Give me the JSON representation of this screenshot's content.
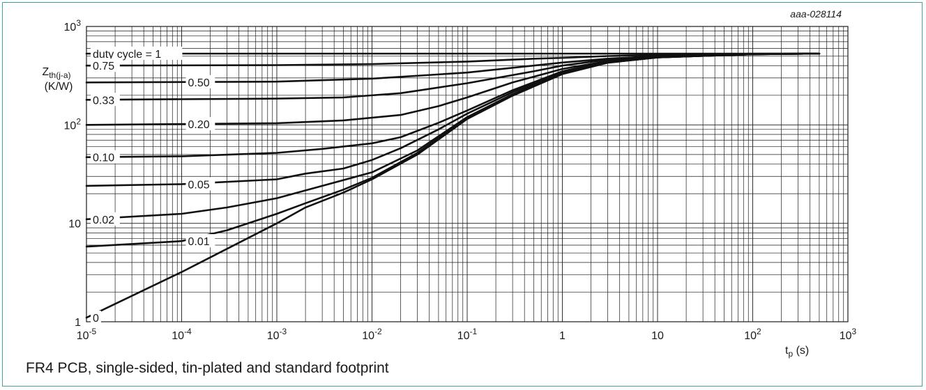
{
  "figure": {
    "code": "aaa-028114",
    "caption": "FR4 PCB, single-sided, tin-plated and standard footprint"
  },
  "chart_data": {
    "type": "line",
    "title": "",
    "xlabel": {
      "main": "t",
      "sub": "p",
      "unit": "(s)"
    },
    "ylabel": {
      "main": "Z",
      "sub": "th(j-a)",
      "unit": "(K/W)"
    },
    "x_scale": "log",
    "y_scale": "log",
    "xlim": [
      1e-05,
      1000
    ],
    "ylim": [
      1,
      1000
    ],
    "grid": true,
    "x_ticks": [
      {
        "value": 1e-05,
        "base": "10",
        "exp": "-5"
      },
      {
        "value": 0.0001,
        "base": "10",
        "exp": "-4"
      },
      {
        "value": 0.001,
        "base": "10",
        "exp": "-3"
      },
      {
        "value": 0.01,
        "base": "10",
        "exp": "-2"
      },
      {
        "value": 0.1,
        "base": "10",
        "exp": "-1"
      },
      {
        "value": 1,
        "base": "1",
        "exp": ""
      },
      {
        "value": 10,
        "base": "10",
        "exp": ""
      },
      {
        "value": 100,
        "base": "10",
        "exp": "2"
      },
      {
        "value": 1000,
        "base": "10",
        "exp": "3"
      }
    ],
    "y_ticks": [
      {
        "value": 1,
        "base": "1",
        "exp": ""
      },
      {
        "value": 10,
        "base": "10",
        "exp": ""
      },
      {
        "value": 100,
        "base": "10",
        "exp": "2"
      },
      {
        "value": 1000,
        "base": "10",
        "exp": "3"
      }
    ],
    "series": [
      {
        "name": "duty cycle = 1",
        "label_at": 1e-05,
        "points": [
          [
            1e-05,
            530
          ],
          [
            500,
            530
          ]
        ]
      },
      {
        "name": "0.75",
        "label_at": 1e-05,
        "points": [
          [
            1e-05,
            400
          ],
          [
            0.001,
            405
          ],
          [
            0.01,
            415
          ],
          [
            0.1,
            440
          ],
          [
            0.5,
            470
          ],
          [
            1,
            480
          ],
          [
            3,
            500
          ],
          [
            10,
            515
          ],
          [
            100,
            528
          ],
          [
            500,
            530
          ]
        ]
      },
      {
        "name": "0.50",
        "label_at": 0.0001,
        "points": [
          [
            1e-05,
            270
          ],
          [
            0.001,
            275
          ],
          [
            0.01,
            295
          ],
          [
            0.1,
            340
          ],
          [
            0.5,
            400
          ],
          [
            1,
            430
          ],
          [
            3,
            470
          ],
          [
            10,
            500
          ],
          [
            100,
            525
          ],
          [
            500,
            530
          ]
        ]
      },
      {
        "name": "0.33",
        "label_at": 1e-05,
        "points": [
          [
            1e-05,
            180
          ],
          [
            0.001,
            185
          ],
          [
            0.005,
            190
          ],
          [
            0.02,
            210
          ],
          [
            0.1,
            265
          ],
          [
            0.5,
            350
          ],
          [
            1,
            400
          ],
          [
            3,
            460
          ],
          [
            10,
            495
          ],
          [
            100,
            525
          ],
          [
            500,
            530
          ]
        ]
      },
      {
        "name": "0.20",
        "label_at": 0.0001,
        "points": [
          [
            1e-05,
            100
          ],
          [
            0.001,
            104
          ],
          [
            0.005,
            111
          ],
          [
            0.02,
            126
          ],
          [
            0.05,
            155
          ],
          [
            0.1,
            190
          ],
          [
            0.3,
            270
          ],
          [
            1,
            370
          ],
          [
            3,
            445
          ],
          [
            10,
            490
          ],
          [
            100,
            524
          ],
          [
            500,
            530
          ]
        ]
      },
      {
        "name": "0.10",
        "label_at": 1e-05,
        "points": [
          [
            1e-05,
            47
          ],
          [
            0.0001,
            48
          ],
          [
            0.001,
            52
          ],
          [
            0.003,
            57
          ],
          [
            0.01,
            65
          ],
          [
            0.02,
            75
          ],
          [
            0.05,
            105
          ],
          [
            0.1,
            140
          ],
          [
            0.3,
            225
          ],
          [
            1,
            350
          ],
          [
            3,
            440
          ],
          [
            10,
            488
          ],
          [
            100,
            523
          ],
          [
            500,
            530
          ]
        ]
      },
      {
        "name": "0.05",
        "label_at": 0.0001,
        "points": [
          [
            1e-05,
            24
          ],
          [
            0.0001,
            25
          ],
          [
            0.001,
            28
          ],
          [
            0.002,
            32
          ],
          [
            0.005,
            36
          ],
          [
            0.01,
            44
          ],
          [
            0.02,
            58
          ],
          [
            0.05,
            90
          ],
          [
            0.1,
            130
          ],
          [
            0.3,
            215
          ],
          [
            1,
            340
          ],
          [
            3,
            435
          ],
          [
            10,
            486
          ],
          [
            100,
            522
          ],
          [
            500,
            530
          ]
        ]
      },
      {
        "name": "0.02",
        "label_at": 1e-05,
        "points": [
          [
            1e-05,
            11
          ],
          [
            0.0001,
            12.5
          ],
          [
            0.0003,
            14.5
          ],
          [
            0.001,
            18
          ],
          [
            0.003,
            24
          ],
          [
            0.01,
            33
          ],
          [
            0.03,
            55
          ],
          [
            0.1,
            120
          ],
          [
            0.3,
            205
          ],
          [
            1,
            335
          ],
          [
            3,
            432
          ],
          [
            10,
            485
          ],
          [
            100,
            522
          ],
          [
            500,
            530
          ]
        ]
      },
      {
        "name": "0.01",
        "label_at": 0.0001,
        "points": [
          [
            1e-05,
            5.8
          ],
          [
            0.0001,
            6.6
          ],
          [
            0.0003,
            8.5
          ],
          [
            0.001,
            12.5
          ],
          [
            0.002,
            16
          ],
          [
            0.005,
            22
          ],
          [
            0.01,
            29
          ],
          [
            0.03,
            52
          ],
          [
            0.1,
            117
          ],
          [
            0.3,
            200
          ],
          [
            1,
            330
          ],
          [
            3,
            430
          ],
          [
            10,
            484
          ],
          [
            100,
            522
          ],
          [
            500,
            530
          ]
        ]
      },
      {
        "name": "0",
        "label_at": 1e-05,
        "points": [
          [
            1e-05,
            1.1
          ],
          [
            0.0001,
            3.2
          ],
          [
            0.001,
            10
          ],
          [
            0.002,
            14.5
          ],
          [
            0.005,
            20.5
          ],
          [
            0.01,
            28
          ],
          [
            0.03,
            50
          ],
          [
            0.1,
            115
          ],
          [
            0.3,
            198
          ],
          [
            1,
            328
          ],
          [
            3,
            428
          ],
          [
            10,
            484
          ],
          [
            100,
            522
          ],
          [
            500,
            530
          ]
        ]
      }
    ]
  }
}
